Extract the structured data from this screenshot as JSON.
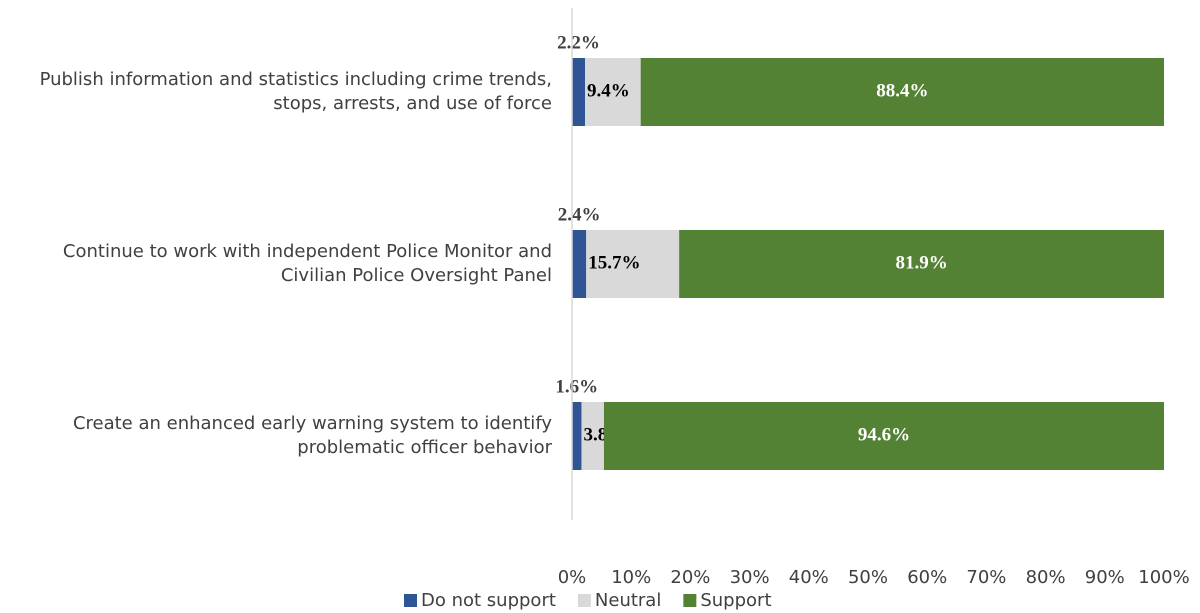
{
  "chart_data": {
    "type": "stacked-barh",
    "categories": [
      "Publish information and statistics including crime trends, stops, arrests, and use of force",
      "Continue to work with independent Police Monitor and Civilian Police Oversight Panel",
      "Create an enhanced early warning system to identify problematic officer behavior"
    ],
    "series": [
      {
        "name": "Do not support",
        "color": "#2f5597",
        "values": [
          2.2,
          2.4,
          1.6
        ],
        "value_labels": [
          "2.2%",
          "2.4%",
          "1.6%"
        ]
      },
      {
        "name": "Neutral",
        "color": "#d9d9d9",
        "values": [
          9.4,
          15.7,
          3.8
        ],
        "value_labels": [
          "9.4%",
          "15.7%",
          "3.8%"
        ]
      },
      {
        "name": "Support",
        "color": "#548235",
        "values": [
          88.4,
          81.9,
          94.6
        ],
        "value_labels": [
          "88.4%",
          "81.9%",
          "94.6%"
        ]
      }
    ],
    "xlim": [
      0,
      100
    ],
    "xticks": [
      {
        "value": 0,
        "label": "0%"
      },
      {
        "value": 10,
        "label": "10%"
      },
      {
        "value": 20,
        "label": "20%"
      },
      {
        "value": 30,
        "label": "30%"
      },
      {
        "value": 40,
        "label": "40%"
      },
      {
        "value": 50,
        "label": "50%"
      },
      {
        "value": 60,
        "label": "60%"
      },
      {
        "value": 70,
        "label": "70%"
      },
      {
        "value": 80,
        "label": "80%"
      },
      {
        "value": 90,
        "label": "90%"
      },
      {
        "value": 100,
        "label": "100%"
      }
    ],
    "legend": "bottom"
  }
}
